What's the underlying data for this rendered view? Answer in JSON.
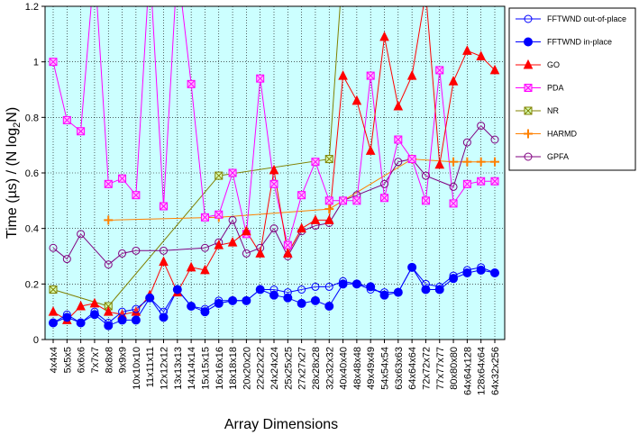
{
  "chart_data": {
    "type": "line",
    "title": "",
    "xlabel": "Array Dimensions",
    "ylabel_parts": {
      "a": "Time (",
      "mu": "µ",
      "b": "s) / (N log",
      "sub": "2",
      "c": "N)"
    },
    "ylim": [
      0,
      1.2
    ],
    "y_ticks": [
      "0",
      "0.2",
      "0.4",
      "0.6",
      "0.8",
      "1",
      "1.2"
    ],
    "y_tick_values": [
      0,
      0.2,
      0.4,
      0.6,
      0.8,
      1.0,
      1.2
    ],
    "grid": true,
    "legend_position": "right",
    "categories": [
      "4x4x4",
      "5x5x5",
      "6x6x6",
      "7x7x7",
      "8x8x8",
      "9x9x9",
      "10x10x10",
      "11x11x11",
      "12x12x12",
      "13x13x13",
      "14x14x14",
      "15x15x15",
      "16x16x16",
      "18x18x18",
      "20x20x20",
      "22x22x22",
      "24x24x24",
      "25x25x25",
      "27x27x27",
      "28x28x28",
      "32x32x32",
      "40x40x40",
      "48x48x48",
      "49x49x49",
      "54x54x54",
      "63x63x63",
      "64x64x64",
      "72x72x72",
      "77x77x77",
      "80x80x80",
      "64x64x128",
      "128x64x64",
      "64x32x256"
    ],
    "series": [
      {
        "name": "FFTWND out-of-place",
        "color": "#0000ff",
        "marker": "circle-open",
        "values": [
          0.06,
          0.09,
          0.06,
          0.1,
          0.06,
          0.1,
          0.11,
          0.15,
          0.1,
          0.18,
          0.12,
          0.11,
          0.14,
          0.14,
          0.14,
          0.18,
          0.18,
          0.17,
          0.18,
          0.19,
          0.19,
          0.21,
          0.2,
          0.18,
          0.17,
          0.17,
          0.26,
          0.2,
          0.19,
          0.23,
          0.25,
          0.26,
          0.24
        ]
      },
      {
        "name": "FFTWND in-place",
        "color": "#0000ff",
        "marker": "circle-filled",
        "values": [
          0.06,
          0.08,
          0.06,
          0.09,
          0.05,
          0.07,
          0.07,
          0.15,
          0.08,
          0.18,
          0.12,
          0.1,
          0.13,
          0.14,
          0.14,
          0.18,
          0.16,
          0.15,
          0.13,
          0.14,
          0.12,
          0.2,
          0.2,
          0.19,
          0.16,
          0.17,
          0.26,
          0.18,
          0.18,
          0.22,
          0.24,
          0.25,
          0.24
        ]
      },
      {
        "name": "GO",
        "color": "#ff0000",
        "marker": "triangle-filled",
        "values": [
          0.1,
          0.07,
          0.12,
          0.13,
          0.1,
          0.09,
          0.1,
          0.16,
          0.28,
          0.17,
          0.26,
          0.25,
          0.34,
          0.35,
          0.39,
          0.31,
          0.61,
          0.31,
          0.4,
          0.43,
          0.43,
          0.95,
          0.86,
          0.68,
          1.09,
          0.84,
          0.95,
          1.25,
          0.63,
          0.93,
          1.04,
          1.02,
          0.97
        ]
      },
      {
        "name": "PDA",
        "color": "#ff00ff",
        "marker": "square-x",
        "values": [
          1.0,
          0.79,
          0.75,
          1.35,
          0.56,
          0.58,
          0.52,
          1.35,
          0.48,
          1.35,
          0.92,
          0.44,
          0.45,
          0.6,
          0.38,
          0.94,
          0.56,
          0.34,
          0.52,
          0.64,
          0.5,
          0.5,
          0.5,
          0.95,
          0.51,
          0.72,
          0.65,
          0.5,
          0.97,
          0.49,
          0.56,
          0.57,
          0.57
        ]
      },
      {
        "name": "NR",
        "color": "#808000",
        "marker": "square-x-olive",
        "values": [
          0.18,
          null,
          null,
          null,
          0.12,
          null,
          null,
          null,
          null,
          null,
          null,
          null,
          0.59,
          null,
          null,
          null,
          null,
          null,
          null,
          null,
          0.65,
          1.35,
          null,
          null,
          null,
          null,
          null,
          null,
          null,
          null,
          null,
          null,
          null
        ]
      },
      {
        "name": "HARMD",
        "color": "#ff8000",
        "marker": "plus",
        "values": [
          null,
          null,
          null,
          null,
          0.43,
          null,
          null,
          null,
          null,
          null,
          null,
          null,
          0.44,
          null,
          null,
          null,
          null,
          null,
          null,
          null,
          0.47,
          null,
          null,
          null,
          null,
          null,
          0.65,
          null,
          null,
          0.64,
          0.64,
          0.64,
          0.64
        ]
      },
      {
        "name": "GPFA",
        "color": "#800080",
        "marker": "circle-open",
        "values": [
          0.33,
          0.29,
          0.38,
          null,
          0.27,
          0.31,
          0.32,
          null,
          0.32,
          null,
          null,
          0.33,
          0.35,
          0.43,
          0.31,
          0.33,
          0.4,
          0.3,
          0.39,
          0.41,
          0.42,
          0.5,
          0.52,
          null,
          0.56,
          0.64,
          0.65,
          0.59,
          null,
          0.55,
          0.71,
          0.77,
          0.72
        ]
      }
    ]
  }
}
